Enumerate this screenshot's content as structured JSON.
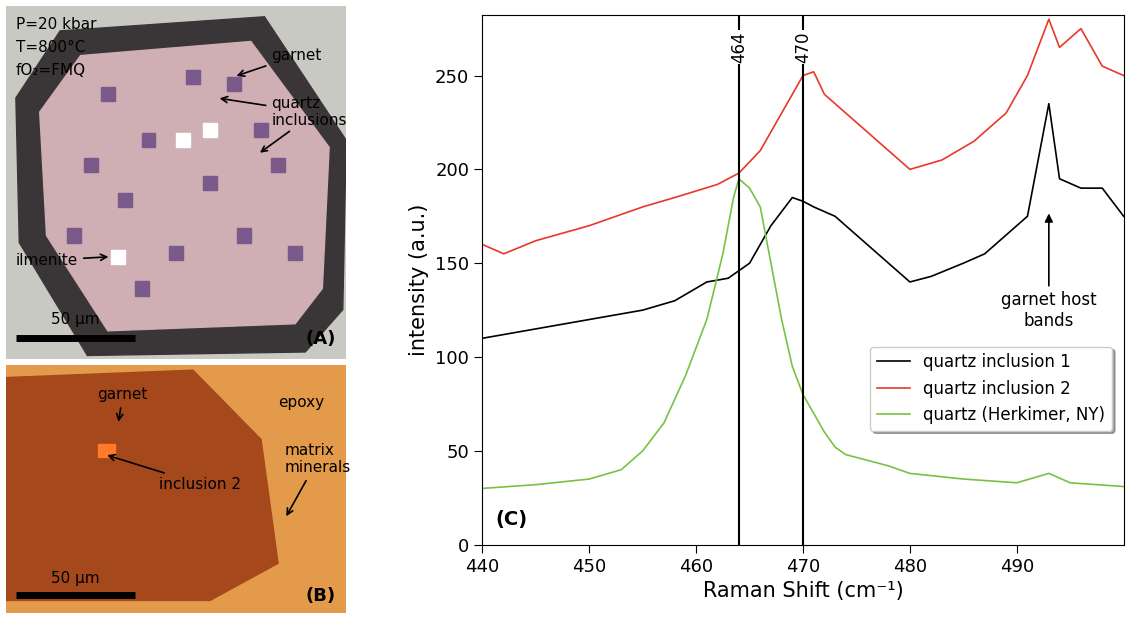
{
  "panel_A": {
    "label": "(A)",
    "conditions": [
      "P=20 kbar",
      "T=800°C",
      "fO₂=FMQ"
    ],
    "annotations": [
      "garnet",
      "quartz\ninclusions",
      "ilmenite"
    ],
    "scale_bar": "50 μm"
  },
  "panel_B": {
    "label": "(B)",
    "annotations": [
      "garnet",
      "inclusion 2",
      "epoxy",
      "matrix\nminerals"
    ],
    "scale_bar": "50 μm"
  },
  "chart_data": {
    "type": "line",
    "panel_label": "(C)",
    "x_label": "Raman Shift (cm⁻¹)",
    "y_label": "intensity (a.u.)",
    "xlim": [
      440,
      500
    ],
    "xticks": [
      440,
      450,
      460,
      470,
      480,
      490
    ],
    "ylim": [
      0,
      282
    ],
    "yticks": [
      0,
      50,
      100,
      150,
      200,
      250
    ],
    "legend": "lower right",
    "reference_lines": [
      {
        "value": 464,
        "label": "464"
      },
      {
        "value": 470,
        "label": "470"
      }
    ],
    "annotation": {
      "text": "garnet host\nbands",
      "x": 493,
      "y": 135,
      "target_y": 178
    },
    "series": [
      {
        "name": "quartz inclusion 1",
        "color": "#000000",
        "x": [
          440,
          445,
          450,
          455,
          458,
          461,
          463,
          465,
          466,
          467,
          469,
          470,
          471,
          473,
          475,
          477,
          479,
          480,
          482,
          485,
          487,
          489,
          491,
          493,
          494,
          496,
          498,
          500
        ],
        "values": [
          110,
          115,
          120,
          125,
          130,
          140,
          142,
          150,
          160,
          170,
          185,
          183,
          180,
          175,
          165,
          155,
          145,
          140,
          143,
          150,
          155,
          165,
          175,
          235,
          195,
          190,
          190,
          175
        ]
      },
      {
        "name": "quartz inclusion 2",
        "color": "#e8382a",
        "x": [
          440,
          442,
          445,
          450,
          455,
          458,
          462,
          464,
          466,
          468,
          470,
          471,
          472,
          474,
          476,
          478,
          480,
          483,
          486,
          489,
          491,
          493,
          494,
          496,
          498,
          500
        ],
        "values": [
          160,
          155,
          162,
          170,
          180,
          185,
          192,
          198,
          210,
          230,
          250,
          252,
          240,
          230,
          220,
          210,
          200,
          205,
          215,
          230,
          250,
          280,
          265,
          275,
          255,
          250
        ]
      },
      {
        "name": "quartz (Herkimer, NY)",
        "color": "#7ac143",
        "x": [
          440,
          445,
          450,
          453,
          455,
          457,
          459,
          461,
          462.5,
          463.5,
          464,
          465,
          466,
          467,
          468,
          469,
          470,
          471,
          472,
          473,
          474,
          476,
          478,
          480,
          485,
          490,
          493,
          495,
          500
        ],
        "values": [
          30,
          32,
          35,
          40,
          50,
          65,
          90,
          120,
          155,
          185,
          195,
          190,
          180,
          150,
          120,
          95,
          80,
          70,
          60,
          52,
          48,
          45,
          42,
          38,
          35,
          33,
          38,
          33,
          31
        ]
      }
    ]
  }
}
